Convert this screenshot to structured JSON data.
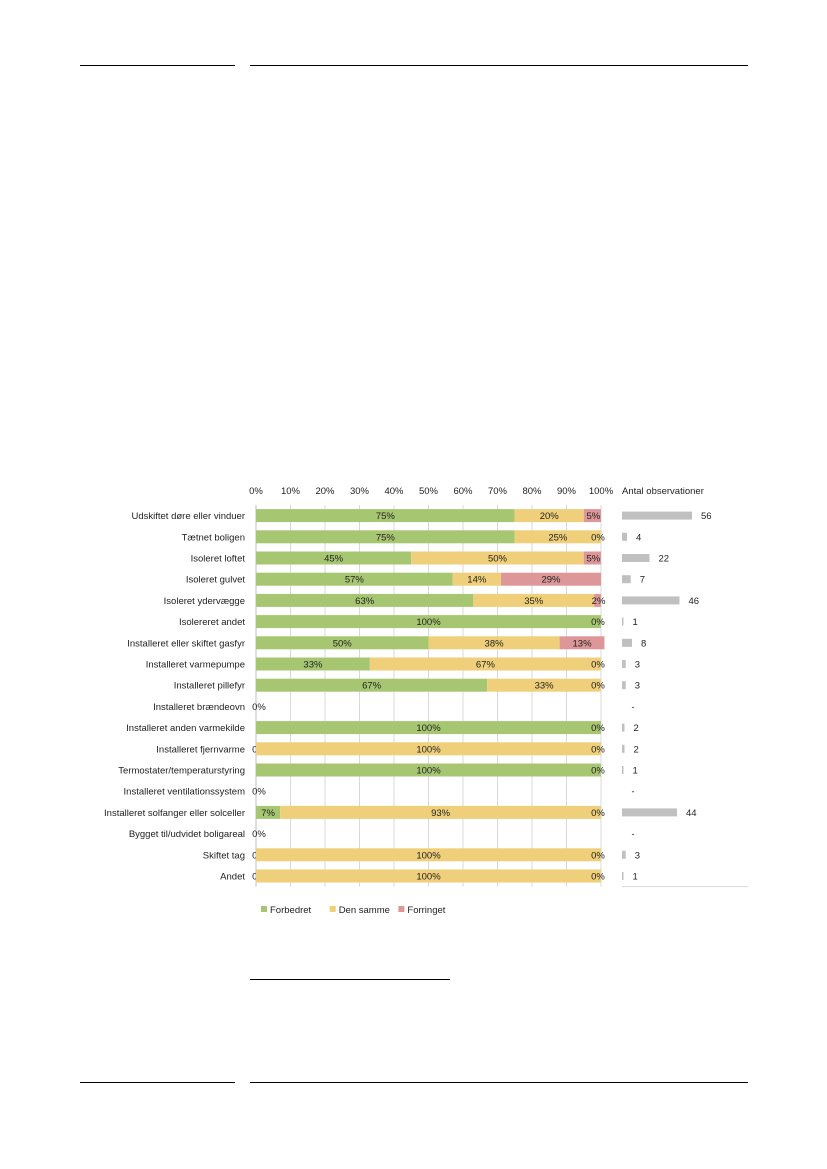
{
  "chart_data": {
    "type": "bar",
    "stacked": true,
    "orientation": "horizontal",
    "xlim": [
      0,
      100
    ],
    "x_ticks": [
      "0%",
      "10%",
      "20%",
      "30%",
      "40%",
      "50%",
      "60%",
      "70%",
      "80%",
      "90%",
      "100%"
    ],
    "grid": true,
    "legend_position": "bottom-left",
    "categories": [
      "Udskiftet døre eller vinduer",
      "Tætnet boligen",
      "Isoleret loftet",
      "Isoleret gulvet",
      "Isoleret ydervægge",
      "Isolereret andet",
      "Installeret eller skiftet gasfyr",
      "Installeret varmepumpe",
      "Installeret pillefyr",
      "Installeret brændeovn",
      "Installeret anden varmekilde",
      "Installeret fjernvarme",
      "Termostater/temperaturstyring",
      "Installeret ventilationssystem",
      "Installeret solfanger eller solceller",
      "Bygget til/udvidet boligareal",
      "Skiftet tag",
      "Andet"
    ],
    "series": [
      {
        "name": "Forbedret",
        "color": "#a7c671",
        "values": [
          75,
          75,
          45,
          57,
          63,
          100,
          50,
          33,
          67,
          0,
          100,
          0,
          100,
          0,
          7,
          0,
          0,
          0
        ],
        "labels": [
          "75%",
          "75%",
          "45%",
          "57%",
          "63%",
          "100%",
          "50%",
          "33%",
          "67%",
          "0%",
          "100%",
          "0%",
          "100%",
          "0%",
          "7%",
          "0%",
          "0%",
          "0%"
        ]
      },
      {
        "name": "Den samme",
        "color": "#f0cf7a",
        "values": [
          20,
          25,
          50,
          14,
          35,
          0,
          38,
          67,
          33,
          0,
          0,
          100,
          0,
          0,
          93,
          0,
          100,
          100
        ],
        "labels": [
          "20%",
          "25%",
          "50%",
          "14%",
          "35%",
          "",
          "38%",
          "67%",
          "33%",
          "",
          "",
          "100%",
          "",
          "",
          "93%",
          "",
          "100%",
          "100%"
        ]
      },
      {
        "name": "Forringet",
        "color": "#de9799",
        "values": [
          5,
          0,
          5,
          29,
          2,
          0,
          13,
          0,
          0,
          0,
          0,
          0,
          0,
          0,
          0,
          0,
          0,
          0
        ],
        "labels": [
          "5%",
          "0%",
          "5%",
          "29%",
          "2%",
          "0%",
          "13%",
          "0%",
          "0%",
          "",
          "0%",
          "0%",
          "0%",
          "",
          "0%",
          "",
          "0%",
          "0%"
        ]
      }
    ],
    "observations": {
      "title": "Antal observationer",
      "bar_color": "#c0c0c0",
      "values": [
        56,
        4,
        22,
        7,
        46,
        1,
        8,
        3,
        3,
        null,
        2,
        2,
        1,
        null,
        44,
        null,
        3,
        1
      ],
      "labels": [
        "56",
        "4",
        "22",
        "7",
        "46",
        "1",
        "8",
        "3",
        "3",
        "-",
        "2",
        "2",
        "1",
        "-",
        "44",
        "-",
        "3",
        "1"
      ]
    }
  }
}
